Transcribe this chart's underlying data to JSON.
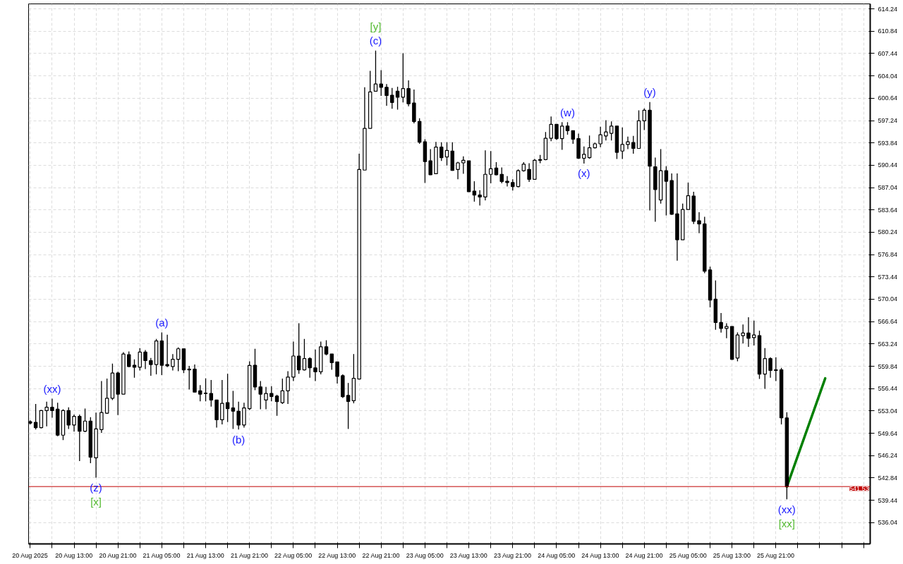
{
  "chart_data": {
    "type": "candlestick",
    "x": [
      "2025-08-20T05:00",
      "2025-08-20T06:00",
      "2025-08-20T07:00",
      "2025-08-20T08:00",
      "2025-08-20T09:00",
      "2025-08-20T10:00",
      "2025-08-20T11:00",
      "2025-08-20T12:00",
      "2025-08-20T13:00",
      "2025-08-20T14:00",
      "2025-08-20T15:00",
      "2025-08-20T16:00",
      "2025-08-20T17:00",
      "2025-08-20T18:00",
      "2025-08-20T19:00",
      "2025-08-20T20:00",
      "2025-08-20T21:00",
      "2025-08-20T22:00",
      "2025-08-20T23:00",
      "2025-08-21T00:00",
      "2025-08-21T01:00",
      "2025-08-21T02:00",
      "2025-08-21T03:00",
      "2025-08-21T04:00",
      "2025-08-21T05:00",
      "2025-08-21T06:00",
      "2025-08-21T07:00",
      "2025-08-21T08:00",
      "2025-08-21T09:00",
      "2025-08-21T10:00",
      "2025-08-21T11:00",
      "2025-08-21T12:00",
      "2025-08-21T13:00",
      "2025-08-21T14:00",
      "2025-08-21T15:00",
      "2025-08-21T16:00",
      "2025-08-21T17:00",
      "2025-08-21T18:00",
      "2025-08-21T19:00",
      "2025-08-21T20:00",
      "2025-08-21T21:00",
      "2025-08-21T22:00",
      "2025-08-21T23:00",
      "2025-08-22T00:00",
      "2025-08-22T01:00",
      "2025-08-22T02:00",
      "2025-08-22T03:00",
      "2025-08-22T04:00",
      "2025-08-22T05:00",
      "2025-08-22T06:00",
      "2025-08-22T07:00",
      "2025-08-22T08:00",
      "2025-08-22T09:00",
      "2025-08-22T10:00",
      "2025-08-22T11:00",
      "2025-08-22T12:00",
      "2025-08-22T13:00",
      "2025-08-22T14:00",
      "2025-08-22T15:00",
      "2025-08-22T16:00",
      "2025-08-22T17:00",
      "2025-08-22T18:00",
      "2025-08-22T19:00",
      "2025-08-22T20:00",
      "2025-08-22T21:00",
      "2025-08-22T22:00",
      "2025-08-22T23:00",
      "2025-08-23T00:00",
      "2025-08-23T01:00",
      "2025-08-23T02:00",
      "2025-08-23T03:00",
      "2025-08-23T04:00",
      "2025-08-23T05:00",
      "2025-08-23T06:00",
      "2025-08-23T07:00",
      "2025-08-23T08:00",
      "2025-08-23T09:00",
      "2025-08-23T10:00",
      "2025-08-23T11:00",
      "2025-08-23T12:00",
      "2025-08-23T13:00",
      "2025-08-23T14:00",
      "2025-08-23T15:00",
      "2025-08-23T16:00",
      "2025-08-23T17:00",
      "2025-08-23T18:00",
      "2025-08-23T19:00",
      "2025-08-23T20:00",
      "2025-08-23T21:00",
      "2025-08-23T22:00",
      "2025-08-23T23:00",
      "2025-08-24T00:00",
      "2025-08-24T01:00",
      "2025-08-24T02:00",
      "2025-08-24T03:00",
      "2025-08-24T04:00",
      "2025-08-24T05:00",
      "2025-08-24T06:00",
      "2025-08-24T07:00",
      "2025-08-24T08:00",
      "2025-08-24T09:00",
      "2025-08-24T10:00",
      "2025-08-24T11:00",
      "2025-08-24T12:00",
      "2025-08-24T13:00",
      "2025-08-24T14:00",
      "2025-08-24T15:00",
      "2025-08-24T16:00",
      "2025-08-24T17:00",
      "2025-08-24T18:00",
      "2025-08-24T19:00",
      "2025-08-24T20:00",
      "2025-08-24T21:00",
      "2025-08-24T22:00",
      "2025-08-24T23:00",
      "2025-08-25T00:00",
      "2025-08-25T01:00",
      "2025-08-25T02:00",
      "2025-08-25T03:00",
      "2025-08-25T04:00",
      "2025-08-25T05:00",
      "2025-08-25T06:00",
      "2025-08-25T07:00",
      "2025-08-25T08:00",
      "2025-08-25T09:00",
      "2025-08-25T10:00",
      "2025-08-25T11:00",
      "2025-08-25T12:00",
      "2025-08-25T13:00",
      "2025-08-25T14:00",
      "2025-08-25T15:00",
      "2025-08-25T16:00",
      "2025-08-25T17:00",
      "2025-08-25T18:00",
      "2025-08-25T19:00",
      "2025-08-25T20:00",
      "2025-08-25T21:00",
      "2025-08-25T22:00",
      "2025-08-25T23:00"
    ],
    "ohlc": [
      [
        551.4,
        551.6,
        551.0,
        551.2
      ],
      [
        551.3,
        554.1,
        550.2,
        550.5
      ],
      [
        550.5,
        553.2,
        550.4,
        553.1
      ],
      [
        553.1,
        554.45,
        550.7,
        553.6
      ],
      [
        553.6,
        554.9,
        552.0,
        553.1
      ],
      [
        553.3,
        554.3,
        549.2,
        549.35
      ],
      [
        549.35,
        553.3,
        548.6,
        553.1
      ],
      [
        553.1,
        553.6,
        550.3,
        550.9
      ],
      [
        550.9,
        552.5,
        549.9,
        552.2
      ],
      [
        552.2,
        552.5,
        545.4,
        549.95
      ],
      [
        549.95,
        553.4,
        549.8,
        551.5
      ],
      [
        551.5,
        552.1,
        545.1,
        546.0
      ],
      [
        545.9,
        552.8,
        542.9,
        550.3
      ],
      [
        550.2,
        557.6,
        549.7,
        552.8
      ],
      [
        552.7,
        557.96,
        552.6,
        554.97
      ],
      [
        554.97,
        560.25,
        554.7,
        558.8
      ],
      [
        558.8,
        559.0,
        552.4,
        555.6
      ],
      [
        555.6,
        562.0,
        555.6,
        561.7
      ],
      [
        561.6,
        562.1,
        559.7,
        559.8
      ],
      [
        560.0,
        560.9,
        558.1,
        559.7
      ],
      [
        559.7,
        562.6,
        559.2,
        562.0
      ],
      [
        562.0,
        562.3,
        559.4,
        560.7
      ],
      [
        560.7,
        561.1,
        558.4,
        560.1
      ],
      [
        560.1,
        564.0,
        558.6,
        563.7
      ],
      [
        563.7,
        565.0,
        558.5,
        560.0
      ],
      [
        560.1,
        564.65,
        559.7,
        559.9
      ],
      [
        559.8,
        561.7,
        559.2,
        560.9
      ],
      [
        560.9,
        562.7,
        559.1,
        562.5
      ],
      [
        562.5,
        562.5,
        558.8,
        559.3
      ],
      [
        559.4,
        559.9,
        556.3,
        559.3
      ],
      [
        559.4,
        560.1,
        555.9,
        555.9
      ],
      [
        556.1,
        556.98,
        554.5,
        555.6
      ],
      [
        555.75,
        558.0,
        554.5,
        555.7
      ],
      [
        555.7,
        557.75,
        553.7,
        554.7
      ],
      [
        554.7,
        554.7,
        550.5,
        551.7
      ],
      [
        551.7,
        557.75,
        551.0,
        554.2
      ],
      [
        554.3,
        558.7,
        551.35,
        553.4
      ],
      [
        553.5,
        556.1,
        550.3,
        553.0
      ],
      [
        553.0,
        554.45,
        550.2,
        550.9
      ],
      [
        550.9,
        554.3,
        550.5,
        553.5
      ],
      [
        553.4,
        560.6,
        553.2,
        559.97
      ],
      [
        560.0,
        562.5,
        556.2,
        556.7
      ],
      [
        556.7,
        557.6,
        553.3,
        555.6
      ],
      [
        554.7,
        556.7,
        553.3,
        555.7
      ],
      [
        555.7,
        556.8,
        554.5,
        555.25
      ],
      [
        555.3,
        555.5,
        552.3,
        554.45
      ],
      [
        554.3,
        557.96,
        554.1,
        556.1
      ],
      [
        556.1,
        559.1,
        554.1,
        558.2
      ],
      [
        558.2,
        563.6,
        557.6,
        561.4
      ],
      [
        561.4,
        566.4,
        558.7,
        559.3
      ],
      [
        559.3,
        564.0,
        559.2,
        561.0
      ],
      [
        561.0,
        561.2,
        558.1,
        559.6
      ],
      [
        559.6,
        562.4,
        557.6,
        559.0
      ],
      [
        559.0,
        563.6,
        558.6,
        562.8
      ],
      [
        562.8,
        563.8,
        561.5,
        561.7
      ],
      [
        561.7,
        561.7,
        559.3,
        560.4
      ],
      [
        560.5,
        560.5,
        557.2,
        558.3
      ],
      [
        558.4,
        558.6,
        555.0,
        555.2
      ],
      [
        555.4,
        557.3,
        550.3,
        554.5
      ],
      [
        554.6,
        561.7,
        554.2,
        558.0
      ],
      [
        557.9,
        592.2,
        557.9,
        589.8
      ],
      [
        589.7,
        602.3,
        589.7,
        596.05
      ],
      [
        596.05,
        604.8,
        596.05,
        601.6
      ],
      [
        601.7,
        607.9,
        601.7,
        602.8
      ],
      [
        602.8,
        604.9,
        601.0,
        602.3
      ],
      [
        602.3,
        602.8,
        599.5,
        601.05
      ],
      [
        601.1,
        602.2,
        599.05,
        600.0
      ],
      [
        601.7,
        602.4,
        598.9,
        600.8
      ],
      [
        600.8,
        607.5,
        600.0,
        602.1
      ],
      [
        602.1,
        603.35,
        599.4,
        599.8
      ],
      [
        599.9,
        601.97,
        596.8,
        597.1
      ],
      [
        597.1,
        597.6,
        593.7,
        593.95
      ],
      [
        594.0,
        594.4,
        587.75,
        591.0
      ],
      [
        591.1,
        592.9,
        588.95,
        589.0
      ],
      [
        589.15,
        594.0,
        589.15,
        593.2
      ],
      [
        593.2,
        593.95,
        591.1,
        591.6
      ],
      [
        591.7,
        593.95,
        590.4,
        592.7
      ],
      [
        592.6,
        593.95,
        589.6,
        589.65
      ],
      [
        589.8,
        590.95,
        588.3,
        590.8
      ],
      [
        590.8,
        591.8,
        589.15,
        591.2
      ],
      [
        591.1,
        591.1,
        586.4,
        586.4
      ],
      [
        586.5,
        588.0,
        584.9,
        585.9
      ],
      [
        585.9,
        586.65,
        584.3,
        585.6
      ],
      [
        585.6,
        592.7,
        585.1,
        589.06
      ],
      [
        589.06,
        592.6,
        587.7,
        589.9
      ],
      [
        590.0,
        590.9,
        588.9,
        589.0
      ],
      [
        589.06,
        590.1,
        587.7,
        587.97
      ],
      [
        588.0,
        588.8,
        587.2,
        587.8
      ],
      [
        587.8,
        588.3,
        586.6,
        587.2
      ],
      [
        587.2,
        589.8,
        587.1,
        589.6
      ],
      [
        589.6,
        590.9,
        589.45,
        590.6
      ],
      [
        589.8,
        590.75,
        587.9,
        588.3
      ],
      [
        588.3,
        591.4,
        588.3,
        591.2
      ],
      [
        591.3,
        592.0,
        590.75,
        591.2
      ],
      [
        591.3,
        595.5,
        591.2,
        594.55
      ],
      [
        594.55,
        597.86,
        594.1,
        596.66
      ],
      [
        596.66,
        596.66,
        594.3,
        594.5
      ],
      [
        594.5,
        597.0,
        592.8,
        596.4
      ],
      [
        596.4,
        597.0,
        595.1,
        595.7
      ],
      [
        595.7,
        595.7,
        593.7,
        594.4
      ],
      [
        594.5,
        595.25,
        591.4,
        591.5
      ],
      [
        591.5,
        593.3,
        590.7,
        592.1
      ],
      [
        591.6,
        594.97,
        591.45,
        593.1
      ],
      [
        593.1,
        593.9,
        593.0,
        593.7
      ],
      [
        593.7,
        596.3,
        593.2,
        595.08
      ],
      [
        594.9,
        597.3,
        594.2,
        595.5
      ],
      [
        595.3,
        597.1,
        594.2,
        596.4
      ],
      [
        596.4,
        596.4,
        591.4,
        592.4
      ],
      [
        592.6,
        596.2,
        591.4,
        593.6
      ],
      [
        593.6,
        594.8,
        592.9,
        594.0
      ],
      [
        593.9,
        594.9,
        592.2,
        593.0
      ],
      [
        593.0,
        598.8,
        593.0,
        597.2
      ],
      [
        597.2,
        599.1,
        595.8,
        598.8
      ],
      [
        598.8,
        600.05,
        583.56,
        590.3
      ],
      [
        590.2,
        591.6,
        581.85,
        586.74
      ],
      [
        585.15,
        592.9,
        584.6,
        589.6
      ],
      [
        589.6,
        590.3,
        582.8,
        588.0
      ],
      [
        588.1,
        589.2,
        582.9,
        582.97
      ],
      [
        583.05,
        589.2,
        575.9,
        579.1
      ],
      [
        579.1,
        584.6,
        579.1,
        583.7
      ],
      [
        583.7,
        587.8,
        583.7,
        585.8
      ],
      [
        585.75,
        586.4,
        581.5,
        581.9
      ],
      [
        582.0,
        583.3,
        580.1,
        581.5
      ],
      [
        581.5,
        582.6,
        574.0,
        574.3
      ],
      [
        574.5,
        575.0,
        568.8,
        569.9
      ],
      [
        570.05,
        572.9,
        565.4,
        566.5
      ],
      [
        566.5,
        567.95,
        564.97,
        565.6
      ],
      [
        565.6,
        566.4,
        564.1,
        565.9
      ],
      [
        565.9,
        565.9,
        560.8,
        560.9
      ],
      [
        561.1,
        565.0,
        560.6,
        564.6
      ],
      [
        564.5,
        566.2,
        563.3,
        564.9
      ],
      [
        564.9,
        567.3,
        562.8,
        564.1
      ],
      [
        564.2,
        566.8,
        563.0,
        564.6
      ],
      [
        564.5,
        565.25,
        557.9,
        558.65
      ],
      [
        558.65,
        562.6,
        556.4,
        561.0
      ],
      [
        561.0,
        561.2,
        558.1,
        559.2
      ],
      [
        559.3,
        561.2,
        557.6,
        559.2
      ],
      [
        559.3,
        559.6,
        551.0,
        551.98
      ],
      [
        551.98,
        552.85,
        539.6,
        541.53
      ]
    ],
    "series": [
      {
        "type": "line",
        "x": [
          "2025-08-25T23:00",
          "2025-08-26T06:00"
        ],
        "values": [
          541.5,
          558.0
        ],
        "color": "#008000"
      }
    ],
    "xlim": [
      "2025-08-20T04:42",
      "2025-08-26T14:12"
    ],
    "ylim": [
      532.8,
      615.0
    ],
    "xticks": [
      {
        "value": "2025-08-20T05:00",
        "label": "20 Aug 2025"
      },
      {
        "value": "2025-08-20T09:00",
        "label": null
      },
      {
        "value": "2025-08-20T13:00",
        "label": "20 Aug 13:00"
      },
      {
        "value": "2025-08-20T17:00",
        "label": null
      },
      {
        "value": "2025-08-20T21:00",
        "label": "20 Aug 21:00"
      },
      {
        "value": "2025-08-21T01:00",
        "label": null
      },
      {
        "value": "2025-08-21T05:00",
        "label": "21 Aug 05:00"
      },
      {
        "value": "2025-08-21T09:00",
        "label": null
      },
      {
        "value": "2025-08-21T13:00",
        "label": "21 Aug 13:00"
      },
      {
        "value": "2025-08-21T17:00",
        "label": null
      },
      {
        "value": "2025-08-21T21:00",
        "label": "21 Aug 21:00"
      },
      {
        "value": "2025-08-22T01:00",
        "label": null
      },
      {
        "value": "2025-08-22T05:00",
        "label": "22 Aug 05:00"
      },
      {
        "value": "2025-08-22T09:00",
        "label": null
      },
      {
        "value": "2025-08-22T13:00",
        "label": "22 Aug 13:00"
      },
      {
        "value": "2025-08-22T17:00",
        "label": null
      },
      {
        "value": "2025-08-22T21:00",
        "label": "22 Aug 21:00"
      },
      {
        "value": "2025-08-23T01:00",
        "label": null
      },
      {
        "value": "2025-08-23T05:00",
        "label": "23 Aug 05:00"
      },
      {
        "value": "2025-08-23T09:00",
        "label": null
      },
      {
        "value": "2025-08-23T13:00",
        "label": "23 Aug 13:00"
      },
      {
        "value": "2025-08-23T17:00",
        "label": null
      },
      {
        "value": "2025-08-23T21:00",
        "label": "23 Aug 21:00"
      },
      {
        "value": "2025-08-24T01:00",
        "label": null
      },
      {
        "value": "2025-08-24T05:00",
        "label": "24 Aug 05:00"
      },
      {
        "value": "2025-08-24T09:00",
        "label": null
      },
      {
        "value": "2025-08-24T13:00",
        "label": "24 Aug 13:00"
      },
      {
        "value": "2025-08-24T17:00",
        "label": null
      },
      {
        "value": "2025-08-24T21:00",
        "label": "24 Aug 21:00"
      },
      {
        "value": "2025-08-25T01:00",
        "label": null
      },
      {
        "value": "2025-08-25T05:00",
        "label": "25 Aug 05:00"
      },
      {
        "value": "2025-08-25T09:00",
        "label": null
      },
      {
        "value": "2025-08-25T13:00",
        "label": "25 Aug 13:00"
      },
      {
        "value": "2025-08-25T17:00",
        "label": null
      },
      {
        "value": "2025-08-25T21:00",
        "label": "25 Aug 21:00"
      },
      {
        "value": "2025-08-26T01:00",
        "label": null
      },
      {
        "value": "2025-08-26T05:00",
        "label": null
      },
      {
        "value": "2025-08-26T09:00",
        "label": null
      },
      {
        "value": "2025-08-26T13:00",
        "label": null
      }
    ],
    "yticks": [
      536.04,
      539.44,
      542.84,
      546.24,
      549.64,
      553.04,
      556.44,
      559.84,
      563.24,
      566.64,
      570.04,
      573.44,
      576.84,
      580.24,
      583.64,
      587.04,
      590.44,
      593.84,
      597.24,
      600.64,
      604.04,
      607.44,
      610.84,
      614.24
    ],
    "grid": true,
    "ref_lines": [
      {
        "axis": "y",
        "value": 541.53,
        "label": "541.53",
        "color": "#c00000"
      }
    ],
    "annotations": [
      {
        "text": "(c)",
        "x": "2025-08-22T20:00",
        "y": 607.9
      },
      {
        "text": "[y]",
        "x": "2025-08-22T20:00",
        "y": 607.9
      },
      {
        "text": "(xx)",
        "x": "2025-08-20T09:00",
        "y": 554.9
      },
      {
        "text": "(a)",
        "x": "2025-08-21T05:00",
        "y": 565.0
      },
      {
        "text": "(b)",
        "x": "2025-08-21T19:00",
        "y": 550.2
      },
      {
        "text": "(z)",
        "x": "2025-08-20T17:00",
        "y": 542.9
      },
      {
        "text": "[x]",
        "x": "2025-08-20T17:00",
        "y": 542.9
      },
      {
        "text": "(w)",
        "x": "2025-08-24T07:00",
        "y": 597.0
      },
      {
        "text": "(x)",
        "x": "2025-08-24T10:00",
        "y": 590.7
      },
      {
        "text": "(y)",
        "x": "2025-08-24T22:00",
        "y": 600.05
      },
      {
        "text": "(xx)",
        "x": "2025-08-25T23:00",
        "y": 539.6
      },
      {
        "text": "[xx]",
        "x": "2025-08-25T23:00",
        "y": 539.6
      }
    ]
  }
}
